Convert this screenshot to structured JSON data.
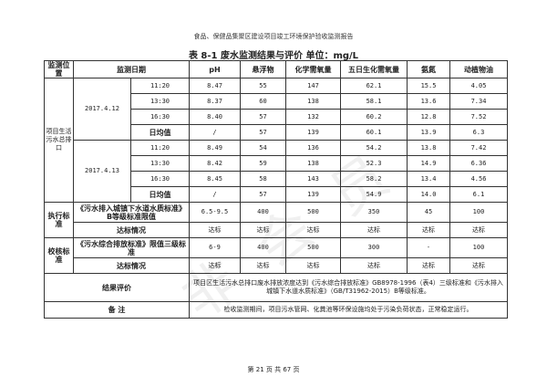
{
  "header": "食品、保健品集聚区建设项目竣工环境保护验收监测报告",
  "title": "表 8-1    废水监测结果与评价    单位：mg/L",
  "columns": [
    "监测位置",
    "监测日期",
    "pH",
    "悬浮物",
    "化学需氧量",
    "五日生化需氧量",
    "氨氮",
    "动植物油"
  ],
  "location": "项目生活污水总排口",
  "days": [
    {
      "date": "2017.4.12",
      "rows": [
        [
          "11:20",
          "8.47",
          "55",
          "147",
          "62.1",
          "15.5",
          "4.05"
        ],
        [
          "13:30",
          "8.37",
          "60",
          "138",
          "58.1",
          "13.6",
          "7.34"
        ],
        [
          "16:30",
          "8.40",
          "57",
          "132",
          "60.2",
          "12.8",
          "7.52"
        ],
        [
          "日均值",
          "/",
          "57",
          "139",
          "60.1",
          "13.9",
          "6.3"
        ]
      ]
    },
    {
      "date": "2017.4.13",
      "rows": [
        [
          "11:20",
          "8.49",
          "54",
          "136",
          "54.2",
          "13.8",
          "7.42"
        ],
        [
          "13:30",
          "8.42",
          "59",
          "138",
          "52.3",
          "14.9",
          "6.36"
        ],
        [
          "16:30",
          "8.45",
          "58",
          "143",
          "58.2",
          "13.4",
          "4.56"
        ],
        [
          "日均值",
          "/",
          "57",
          "139",
          "54.9",
          "14.0",
          "6.1"
        ]
      ]
    }
  ],
  "exec": {
    "label": "执行标准",
    "std": "《污水排入城镇下水道水质标准》B等级标准限值",
    "values": [
      "6.5-9.5",
      "400",
      "500",
      "350",
      "45",
      "100"
    ],
    "status_label": "达标情况",
    "status": [
      "达标",
      "达标",
      "达标",
      "达标",
      "达标",
      "达标"
    ]
  },
  "check": {
    "label": "校核标准",
    "std": "《污水综合排放标准》限值三级标准",
    "values": [
      "6-9",
      "400",
      "500",
      "300",
      "-",
      "100"
    ],
    "status_label": "达标情况",
    "status": [
      "达标",
      "达标",
      "达标",
      "达标",
      "达标",
      "达标"
    ]
  },
  "eval": {
    "label": "结果评价",
    "text": "项目区生活污水总排口废水排放浓度达到《污水综合排放标准》GB8978-1996（表4）三级标准和《污水排入城镇下水道水质标准》（GB/T31962-2015）B等级标准。"
  },
  "note": {
    "label": "备    注",
    "text": "检收监测期间，项目污水管网、化粪池等环保设施均处于污染负荷状态，正常稳定运行。"
  },
  "footer": "第 21 页 共 67 页"
}
